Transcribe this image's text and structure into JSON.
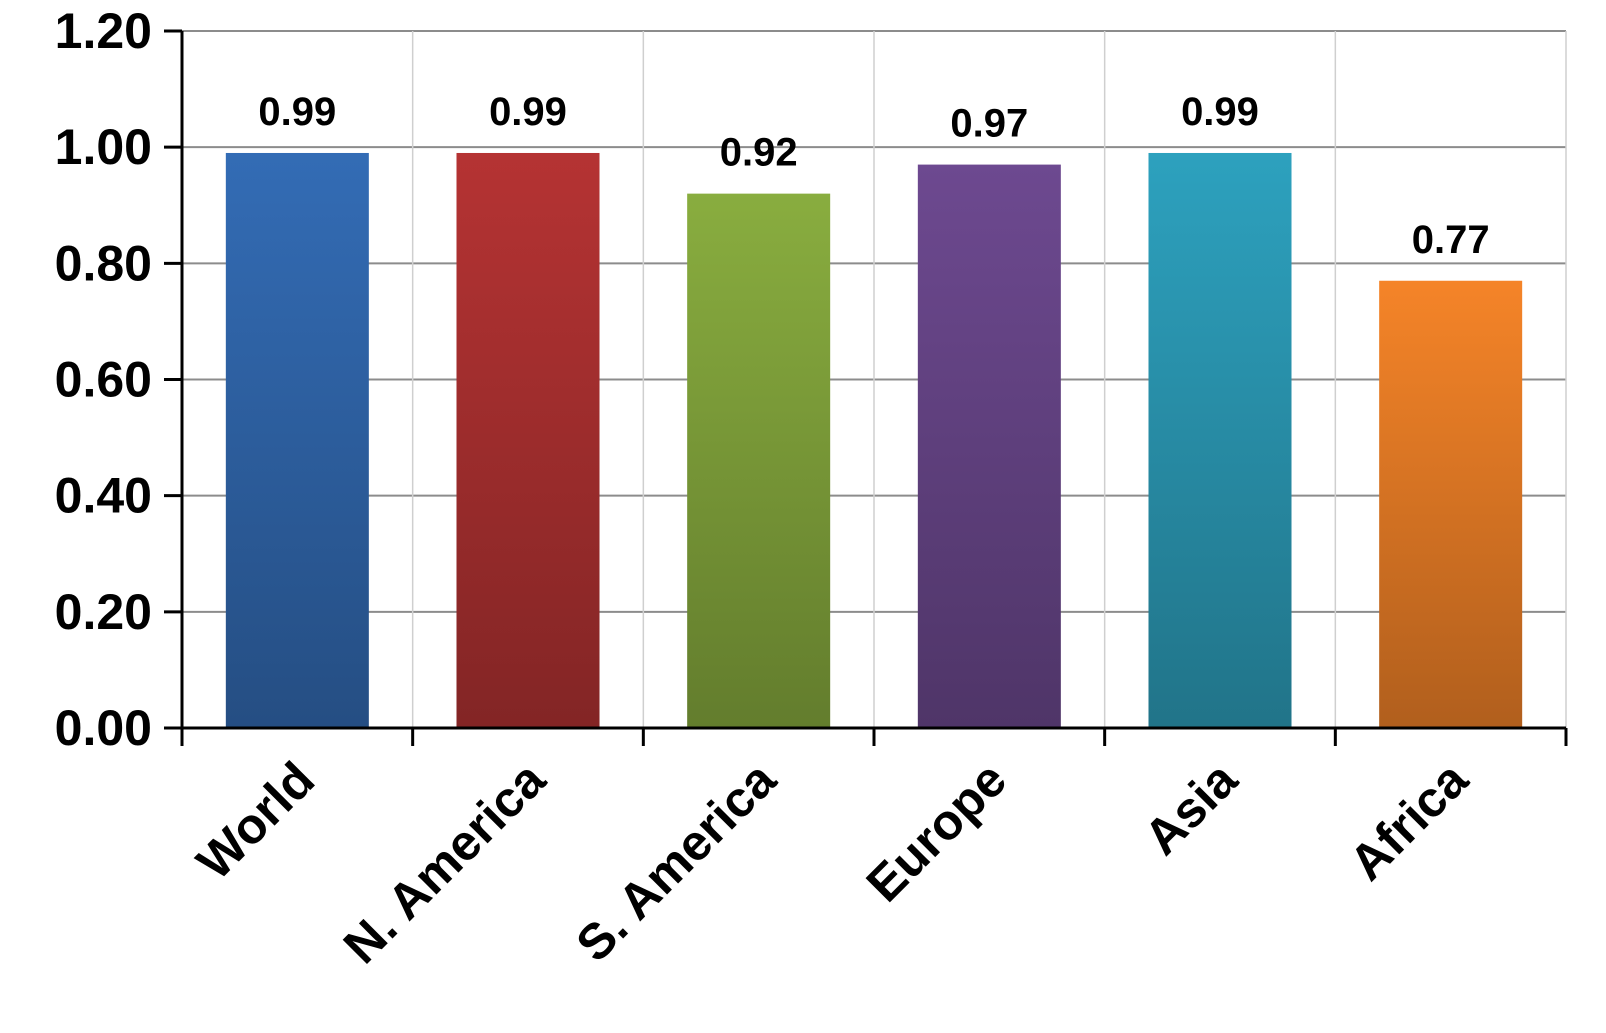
{
  "chart_data": {
    "type": "bar",
    "title": "",
    "xlabel": "",
    "ylabel": "",
    "categories": [
      "World",
      "N. America",
      "S. America",
      "Europe",
      "Asia",
      "Africa"
    ],
    "values": [
      0.99,
      0.99,
      0.92,
      0.97,
      0.99,
      0.77
    ],
    "value_labels": [
      "0.99",
      "0.99",
      "0.92",
      "0.97",
      "0.99",
      "0.77"
    ],
    "ylim": [
      0,
      1.2
    ],
    "yticks": [
      0,
      0.2,
      0.4,
      0.6,
      0.8,
      1.0,
      1.2
    ],
    "ytick_labels": [
      "0.00",
      "0.20",
      "0.40",
      "0.60",
      "0.80",
      "1.00",
      "1.20"
    ],
    "grid": true,
    "legend": "none",
    "colors": [
      "#2F64A8",
      "#A82F2F",
      "#7FA03A",
      "#654485",
      "#2A95B0",
      "#E37A25"
    ]
  }
}
